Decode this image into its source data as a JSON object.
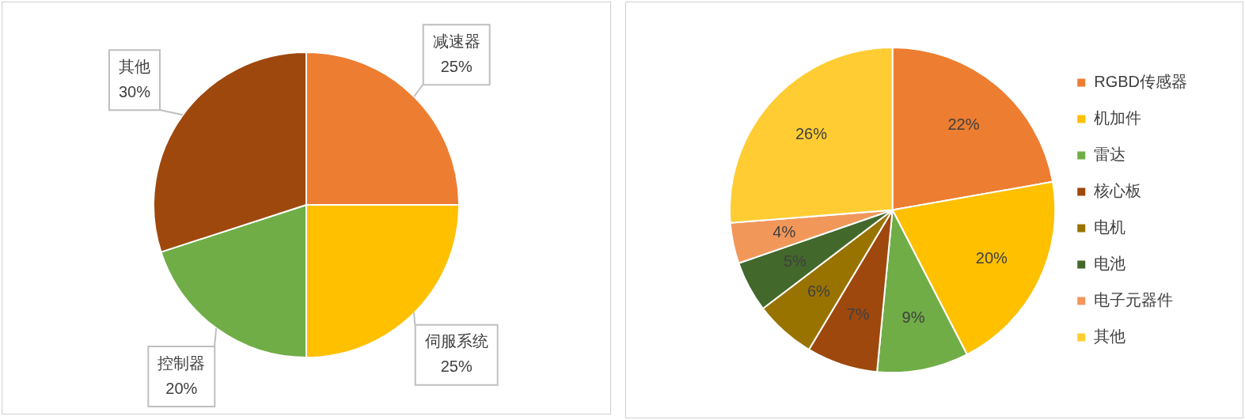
{
  "chart_data": [
    {
      "type": "pie",
      "categories": [
        "减速器",
        "伺服系统",
        "控制器",
        "其他"
      ],
      "values": [
        25,
        25,
        20,
        30
      ],
      "colors": [
        "#ed7d31",
        "#ffc000",
        "#70ad47",
        "#9e480e"
      ],
      "value_labels": [
        "25%",
        "25%",
        "20%",
        "30%"
      ],
      "legend": false
    },
    {
      "type": "pie",
      "categories": [
        "RGBD传感器",
        "机加件",
        "雷达",
        "核心板",
        "电机",
        "电池",
        "电子元器件",
        "其他"
      ],
      "values": [
        22,
        20,
        9,
        7,
        6,
        5,
        4,
        26
      ],
      "colors": [
        "#ed7d31",
        "#ffc000",
        "#70ad47",
        "#9e480e",
        "#997300",
        "#43682b",
        "#f1975a",
        "#ffcd33"
      ],
      "value_labels": [
        "22%",
        "20%",
        "9%",
        "7%",
        "6%",
        "5%",
        "4%",
        "26%"
      ],
      "legend": "right"
    }
  ]
}
